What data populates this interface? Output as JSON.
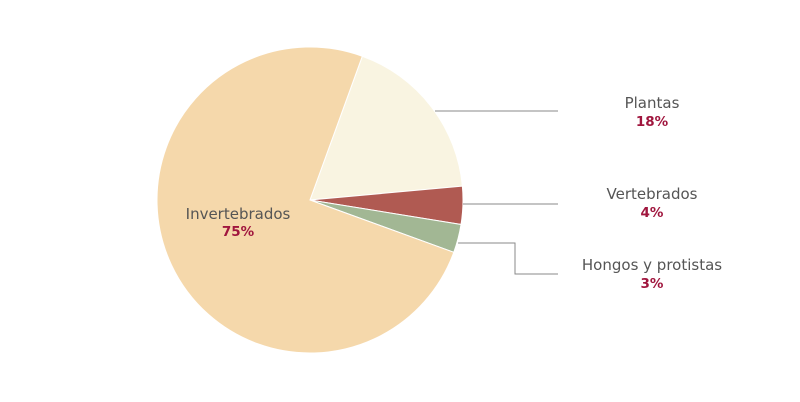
{
  "chart_data": {
    "type": "pie",
    "title": "",
    "slices": [
      {
        "label": "Plantas",
        "value": 18,
        "display": "18%",
        "color": "#f9f4e1"
      },
      {
        "label": "Vertebrados",
        "value": 4,
        "display": "4%",
        "color": "#b05a52"
      },
      {
        "label": "Hongos y protistas",
        "value": 3,
        "display": "3%",
        "color": "#a2b794"
      },
      {
        "label": "Invertebrados",
        "value": 75,
        "display": "75%",
        "color": "#f5d8ab"
      }
    ],
    "label_color": "#555555",
    "percent_color": "#a0163e"
  }
}
